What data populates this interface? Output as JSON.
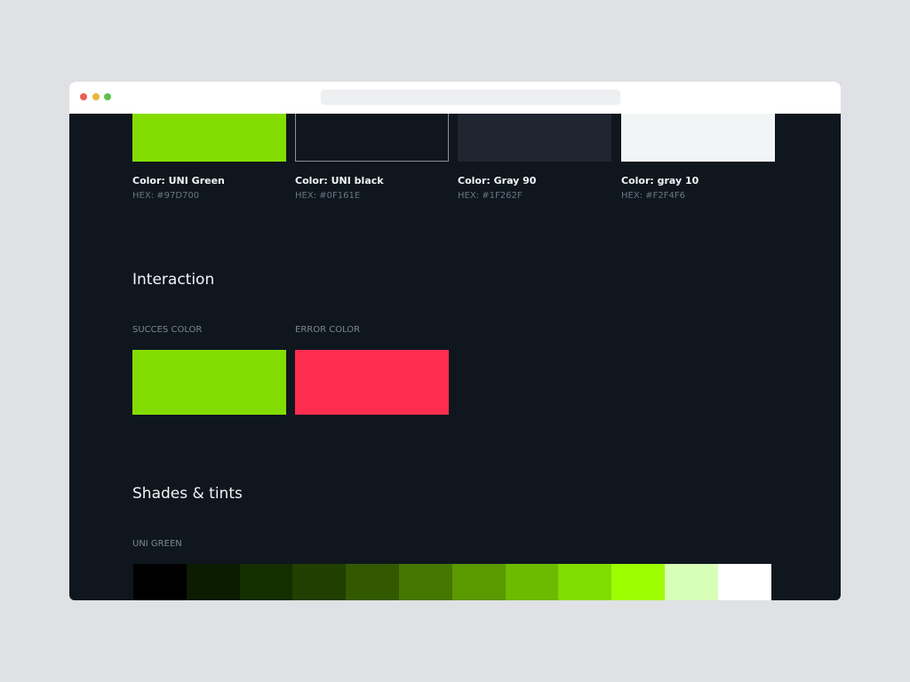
{
  "brand_colors": [
    {
      "name": "Color: UNI Green",
      "hex": "HEX: #97D700",
      "swatch": "#84dd00"
    },
    {
      "name": "Color: UNI black",
      "hex": "HEX: #0F161E",
      "swatch": "#0f161e"
    },
    {
      "name": "Color: Gray 90",
      "hex": "HEX: #1F262F",
      "swatch": "#1f262f"
    },
    {
      "name": "Color: gray 10",
      "hex": "HEX: #F2F4F6",
      "swatch": "#f2f4f6"
    }
  ],
  "interaction": {
    "title": "Interaction",
    "success_label": "SUCCES COLOR",
    "success_color": "#84dd00",
    "error_label": "ERROR COLOR",
    "error_color": "#ff2d50"
  },
  "shades": {
    "title": "Shades & tints",
    "label": "UNI GREEN",
    "colors": [
      "#000000",
      "#0b1c00",
      "#152e00",
      "#203f00",
      "#325800",
      "#457700",
      "#5a9900",
      "#6cbb00",
      "#80dd00",
      "#9dfc00",
      "#d8ffb8",
      "#ffffff"
    ]
  }
}
